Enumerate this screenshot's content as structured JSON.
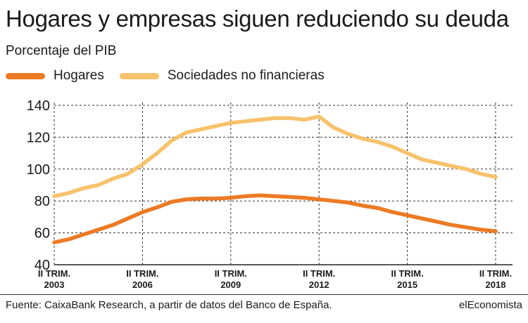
{
  "title": "Hogares y empresas siguen reduciendo su deuda",
  "subtitle": "Porcentaje del PIB",
  "source": "Fuente: CaixaBank Research, a partir de datos del Banco de España.",
  "brand": "elEconomista",
  "colors": {
    "hogares": "#ec7a24",
    "sociedades": "#f7c26b",
    "grid": "#333333",
    "axis": "#222222"
  },
  "legend": [
    {
      "name": "Hogares",
      "color": "#ec7a24"
    },
    {
      "name": "Sociedades no financieras",
      "color": "#f7c26b"
    }
  ],
  "chart_data": {
    "type": "line",
    "title": "Hogares y empresas siguen reduciendo su deuda",
    "ylabel": "Porcentaje del PIB",
    "xlabel": "",
    "ylim": [
      40,
      140
    ],
    "yticks": [
      40,
      60,
      80,
      100,
      120,
      140
    ],
    "xlim": [
      2003.25,
      2018.25
    ],
    "xticks": [
      {
        "x": 2003.25,
        "line1": "II TRIM.",
        "line2": "2003"
      },
      {
        "x": 2006.25,
        "line1": "II TRIM.",
        "line2": "2006"
      },
      {
        "x": 2009.25,
        "line1": "II TRIM.",
        "line2": "2009"
      },
      {
        "x": 2012.25,
        "line1": "II TRIM.",
        "line2": "2012"
      },
      {
        "x": 2015.25,
        "line1": "II TRIM.",
        "line2": "2015"
      },
      {
        "x": 2018.25,
        "line1": "II TRIM.",
        "line2": "2018"
      }
    ],
    "grid": "vertical dashed at x ticks, horizontal dashed at y ticks",
    "x": [
      2003.25,
      2003.75,
      2004.25,
      2004.75,
      2005.25,
      2005.75,
      2006.25,
      2006.75,
      2007.25,
      2007.75,
      2008.25,
      2008.75,
      2009.25,
      2009.75,
      2010.25,
      2010.75,
      2011.25,
      2011.75,
      2012.25,
      2012.75,
      2013.25,
      2013.75,
      2014.25,
      2014.75,
      2015.25,
      2015.75,
      2016.25,
      2016.75,
      2017.25,
      2017.75,
      2018.25
    ],
    "series": [
      {
        "name": "Hogares",
        "color": "#ec7a24",
        "values": [
          54,
          56,
          59,
          62,
          65,
          69,
          73,
          76,
          79.5,
          81,
          81.5,
          81.5,
          82,
          83,
          83.5,
          83,
          82.5,
          82,
          81,
          80,
          79,
          77,
          75.5,
          73,
          71,
          69,
          67,
          65,
          63.5,
          62,
          61
        ]
      },
      {
        "name": "Sociedades no financieras",
        "color": "#f7c26b",
        "values": [
          83,
          85,
          88,
          90,
          94,
          97,
          103,
          110,
          118,
          123,
          125,
          127,
          129,
          130,
          131,
          132,
          132,
          131,
          133,
          126,
          122,
          119,
          117,
          114,
          110,
          106,
          104,
          102,
          100,
          97,
          95
        ]
      }
    ]
  }
}
